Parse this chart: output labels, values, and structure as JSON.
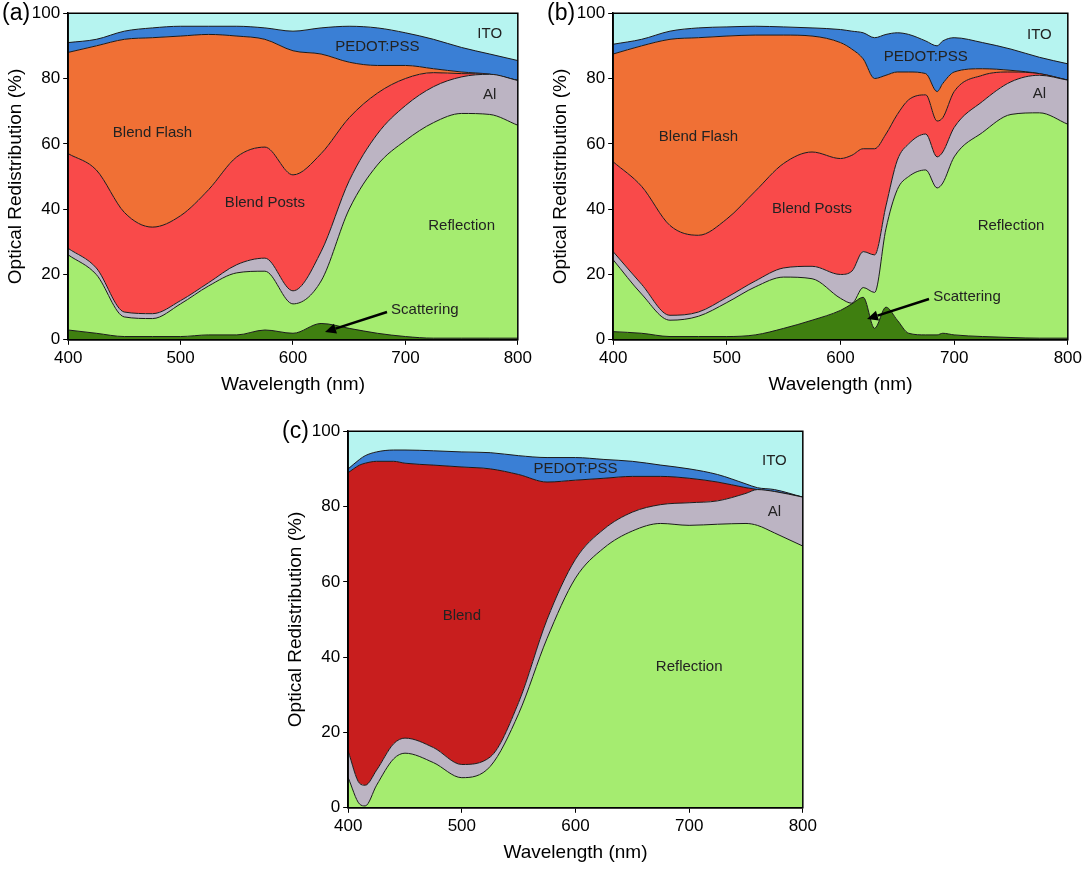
{
  "chart_data": [
    {
      "type": "area",
      "title": "(a)",
      "xlabel": "Wavelength (nm)",
      "ylabel": "Optical Redistribution (%)",
      "stacked": true,
      "x": [
        400,
        425,
        450,
        475,
        500,
        525,
        550,
        575,
        600,
        625,
        650,
        675,
        700,
        725,
        750,
        775,
        800
      ],
      "xlim": [
        400,
        800
      ],
      "xticks": [
        400,
        500,
        600,
        700,
        800
      ],
      "ylim": [
        0,
        100
      ],
      "yticks": [
        0,
        20,
        40,
        60,
        80,
        100
      ],
      "series": [
        {
          "name": "Scattering",
          "color": "#3f7f10",
          "values": [
            3,
            2,
            1,
            1,
            1,
            1.5,
            1.5,
            3,
            2,
            5,
            3.5,
            2,
            1,
            0.5,
            0.5,
            0.5,
            0.5
          ]
        },
        {
          "name": "Reflection",
          "color": "#a5ec70",
          "values": [
            23,
            18,
            6,
            5.5,
            10,
            15,
            19,
            18,
            9,
            13,
            36.5,
            51.5,
            60,
            66,
            68.8,
            68.5,
            65.2
          ]
        },
        {
          "name": "Al",
          "color": "#bcb4c3",
          "values": [
            2,
            2,
            1.5,
            1.5,
            1,
            1,
            2.5,
            4,
            4,
            9,
            8.7,
            9.5,
            10.7,
            11,
            11.2,
            12.3,
            13.7
          ]
        },
        {
          "name": "Blend Posts",
          "color": "#f94a4a",
          "values": [
            29,
            30,
            30.5,
            26.5,
            26,
            28.5,
            33,
            34,
            35.5,
            30,
            19.3,
            12.5,
            8.3,
            4.3,
            1,
            0,
            0
          ]
        },
        {
          "name": "Blend Flash",
          "color": "#f07035",
          "values": [
            31,
            38,
            53,
            58,
            55,
            47.5,
            37,
            33,
            38,
            30.5,
            17,
            8.5,
            4,
            1.2,
            0.5,
            0,
            0
          ]
        },
        {
          "name": "PEDOT:PSS",
          "color": "#3a7fd5",
          "values": [
            3,
            2,
            2.5,
            3,
            3,
            2.5,
            3,
            3.5,
            6,
            8,
            11,
            11.5,
            10,
            9,
            7.5,
            6.2,
            6.1
          ]
        },
        {
          "name": "ITO",
          "color": "#b6f4f0",
          "values": [
            9,
            8,
            5.5,
            4.5,
            4,
            4,
            4,
            4.5,
            5.5,
            4.5,
            4,
            4.5,
            6,
            8,
            10.5,
            12.5,
            14.5
          ]
        }
      ]
    },
    {
      "type": "area",
      "title": "(b)",
      "xlabel": "Wavelength (nm)",
      "ylabel": "Optical Redistribution (%)",
      "stacked": true,
      "x": [
        400,
        425,
        450,
        475,
        500,
        525,
        550,
        575,
        600,
        610,
        620,
        630,
        640,
        650,
        660,
        675,
        685,
        690,
        700,
        725,
        750,
        775,
        800
      ],
      "xlim": [
        400,
        800
      ],
      "xticks": [
        400,
        500,
        600,
        700,
        800
      ],
      "ylim": [
        0,
        100
      ],
      "yticks": [
        0,
        20,
        40,
        60,
        80,
        100
      ],
      "series": [
        {
          "name": "Scattering",
          "color": "#3f7f10",
          "values": [
            2.5,
            2,
            1,
            1,
            1,
            1.5,
            3.5,
            6,
            9,
            11,
            13,
            3.5,
            10,
            6,
            2,
            1.5,
            1.5,
            2,
            1.5,
            1,
            0.7,
            0.5,
            0.5
          ]
        },
        {
          "name": "Reflection",
          "color": "#a5ec70",
          "values": [
            22,
            12,
            5,
            6.2,
            10.4,
            14.7,
            15.7,
            12.7,
            3.7,
            0.2,
            3,
            11,
            24,
            40,
            48,
            50.5,
            45,
            46,
            54.5,
            62.5,
            68.3,
            69,
            65.5
          ]
        },
        {
          "name": "Al",
          "color": "#bcb4c3",
          "values": [
            2.5,
            3,
            1.5,
            1.3,
            1.6,
            1.8,
            2.8,
            3.8,
            7.3,
            9.8,
            11,
            11.5,
            7,
            9,
            10,
            11,
            9.5,
            9.5,
            9,
            9.5,
            10,
            11.5,
            13.5
          ]
        },
        {
          "name": "Blend Posts",
          "color": "#f94a4a",
          "values": [
            27.5,
            30,
            27.5,
            23.5,
            24,
            27.5,
            32,
            35,
            35.5,
            35.5,
            31.5,
            32.5,
            22,
            14,
            13.5,
            12,
            11,
            10.5,
            11,
            8,
            3,
            0.5,
            0
          ]
        },
        {
          "name": "Blend Flash",
          "color": "#f07035",
          "values": [
            33,
            43,
            57,
            60.5,
            56,
            47.8,
            39.3,
            35.5,
            35.5,
            32.5,
            27.5,
            21.5,
            18,
            13,
            8.5,
            6.5,
            9,
            10.5,
            6,
            2,
            0.5,
            0,
            0
          ]
        },
        {
          "name": "PEDOT:PSS",
          "color": "#3a7fd5",
          "values": [
            3,
            2,
            2.5,
            3,
            2.8,
            2.7,
            2.5,
            2.5,
            4,
            5.5,
            8,
            12.5,
            12.5,
            12,
            11.5,
            10,
            14,
            13,
            10.5,
            8,
            6.5,
            5,
            5
          ]
        },
        {
          "name": "ITO",
          "color": "#b6f4f0",
          "values": [
            9.5,
            8,
            5.5,
            4.5,
            4.2,
            4,
            4.2,
            4.5,
            5,
            5.5,
            6,
            7.5,
            6.5,
            6,
            6.5,
            8.5,
            10,
            8.5,
            7.5,
            9,
            11,
            13.5,
            15.5
          ]
        }
      ]
    },
    {
      "type": "area",
      "title": "(c)",
      "xlabel": "Wavelength (nm)",
      "ylabel": "Optical Redistribution (%)",
      "stacked": true,
      "x": [
        400,
        410,
        415,
        425,
        440,
        450,
        475,
        500,
        525,
        550,
        575,
        600,
        625,
        650,
        675,
        700,
        725,
        750,
        760,
        775,
        800
      ],
      "xlim": [
        400,
        800
      ],
      "xticks": [
        400,
        500,
        600,
        700,
        800
      ],
      "ylim": [
        0,
        100
      ],
      "yticks": [
        0,
        20,
        40,
        60,
        80,
        100
      ],
      "series": [
        {
          "name": "Reflection",
          "color": "#a5ec70",
          "values": [
            8,
            1,
            0.5,
            6,
            13,
            14.5,
            12,
            8,
            11,
            25,
            45,
            61,
            69,
            73.5,
            75.5,
            75,
            75.3,
            75.5,
            75,
            73,
            69.5
          ]
        },
        {
          "name": "Al",
          "color": "#bcb4c3",
          "values": [
            7,
            5.5,
            5.5,
            4,
            4,
            4,
            4,
            3.5,
            2.5,
            3,
            5,
            5,
            5,
            5,
            5,
            6,
            6.2,
            8,
            9.5,
            11,
            13
          ]
        },
        {
          "name": "Blend",
          "color": "#c81e1e",
          "values": [
            74,
            84.5,
            85.5,
            82,
            75,
            73,
            75,
            79,
            76.5,
            60.5,
            36.5,
            21,
            13.5,
            9.5,
            7.5,
            6.5,
            5,
            1.5,
            0,
            0,
            0
          ]
        },
        {
          "name": "PEDOT:PSS",
          "color": "#3a7fd5",
          "values": [
            1,
            1.5,
            2,
            2.5,
            3,
            3.5,
            3.8,
            4,
            4.3,
            5,
            6.5,
            6,
            5,
            4,
            3,
            2.5,
            2,
            1,
            0.5,
            0.5,
            0
          ]
        },
        {
          "name": "ITO",
          "color": "#b6f4f0",
          "values": [
            10,
            7.5,
            6.5,
            5.5,
            5,
            5,
            5.2,
            5.5,
            5.7,
            6.5,
            7,
            7,
            7.5,
            8,
            9,
            10,
            11.5,
            14,
            15,
            15.5,
            17.5
          ]
        }
      ]
    }
  ]
}
